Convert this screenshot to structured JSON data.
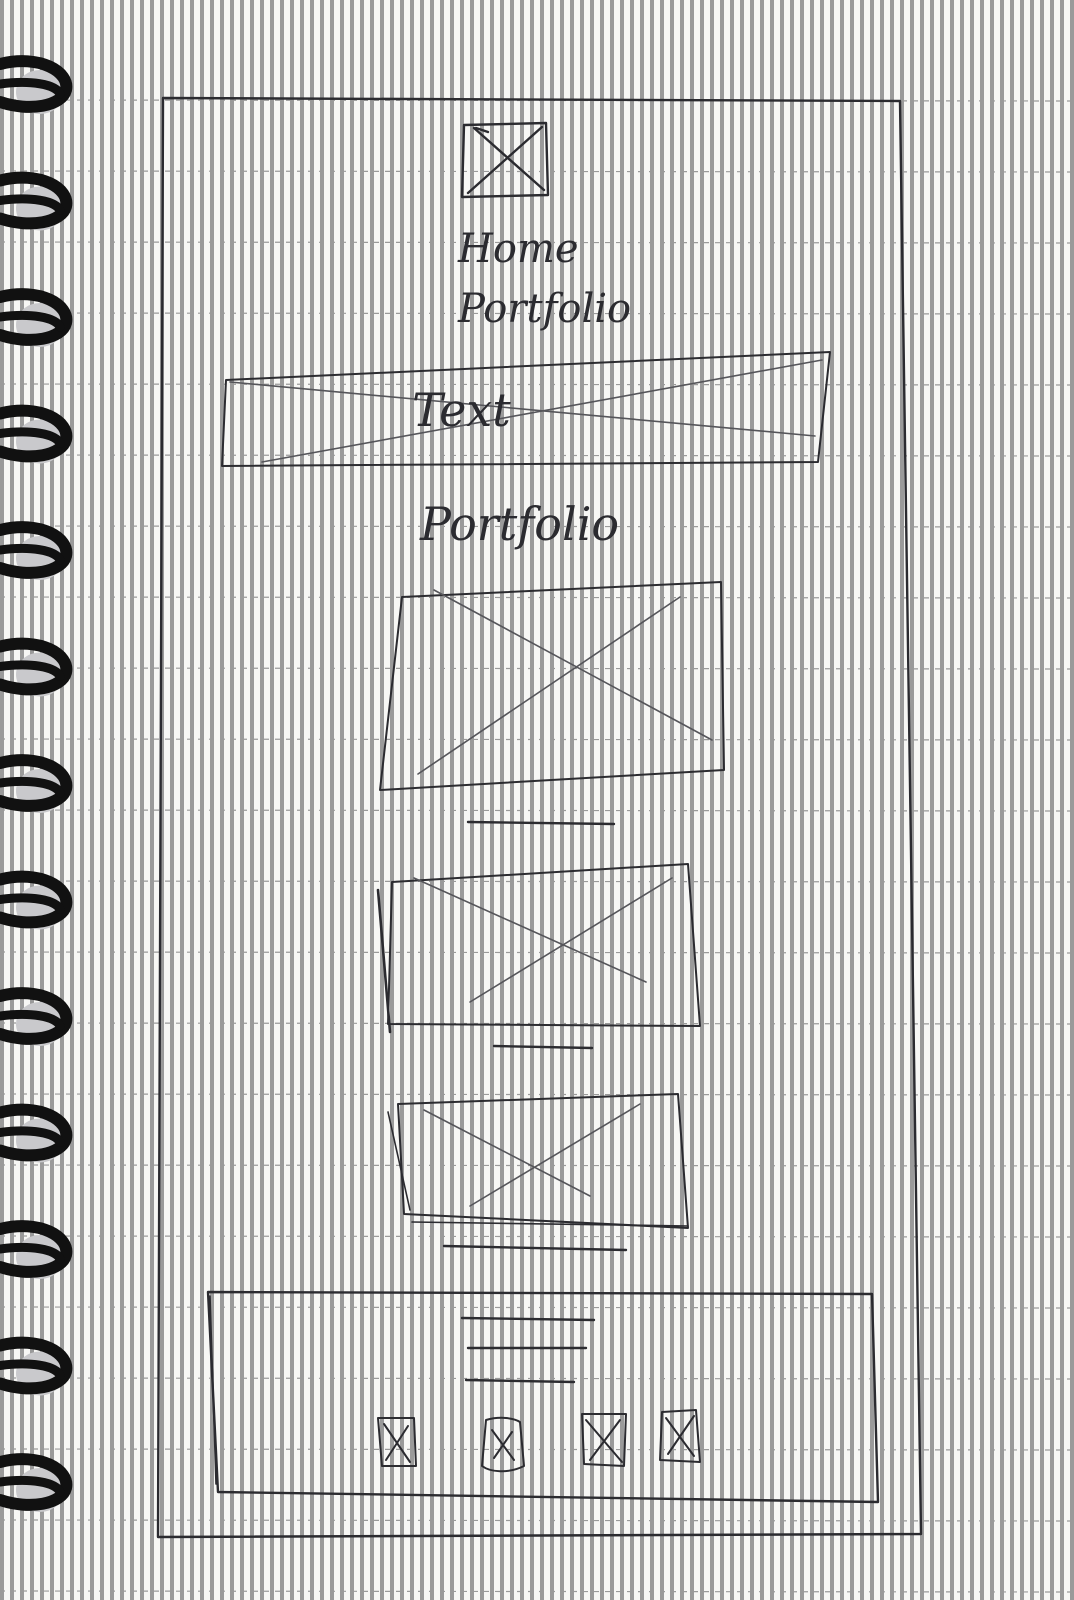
{
  "sketch": {
    "nav": {
      "items": [
        {
          "label": "Home"
        },
        {
          "label": "Portfolio"
        }
      ]
    },
    "hero": {
      "label": "Text"
    },
    "portfolio": {
      "heading": "Portfolio"
    }
  },
  "colors": {
    "paper": "#f7f7f5",
    "ink": "#2b2b30",
    "rule": "#9a9a9a",
    "spiral": "#111111"
  }
}
